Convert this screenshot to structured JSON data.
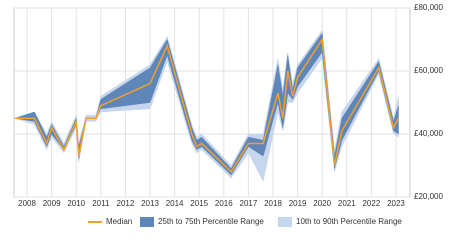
{
  "chart_data": {
    "type": "line",
    "x": [
      2007.5,
      2008.3,
      2008.8,
      2009.0,
      2009.5,
      2010.0,
      2010.1,
      2010.4,
      2010.8,
      2011.0,
      2013.0,
      2013.7,
      2014.7,
      2014.9,
      2015.1,
      2016.3,
      2017.0,
      2017.6,
      2018.2,
      2018.4,
      2018.6,
      2018.8,
      2019.0,
      2020.0,
      2020.5,
      2020.8,
      2022.3,
      2022.9,
      2023.1
    ],
    "series": [
      {
        "name": "10th to 90th Percentile Range",
        "color": "#c6d6ec",
        "lower": [
          45000,
          43000,
          35000,
          39000,
          34000,
          42000,
          31000,
          44000,
          44000,
          47000,
          48000,
          63000,
          37000,
          34000,
          35000,
          26000,
          34000,
          25000,
          47000,
          41000,
          50000,
          50000,
          53000,
          64000,
          28000,
          36000,
          59000,
          40000,
          39000
        ],
        "upper": [
          45000,
          47000,
          40000,
          44000,
          37000,
          46000,
          37000,
          46000,
          46000,
          52000,
          62000,
          71000,
          43000,
          39000,
          40000,
          30000,
          40000,
          40000,
          64000,
          54000,
          66000,
          56000,
          62000,
          73000,
          35000,
          47000,
          64000,
          45000,
          52000
        ]
      },
      {
        "name": "25th to 75th Percentile Range",
        "color": "#5f86b8",
        "lower": [
          45000,
          44000,
          36000,
          40000,
          35000,
          43000,
          32000,
          45000,
          45000,
          48000,
          50000,
          65000,
          38000,
          35000,
          36000,
          27000,
          36000,
          33000,
          50000,
          42000,
          53000,
          51000,
          55000,
          66000,
          29000,
          38000,
          60000,
          41000,
          40000
        ],
        "upper": [
          45000,
          47000,
          39000,
          43000,
          36000,
          45000,
          36000,
          45000,
          45000,
          51000,
          61000,
          70000,
          42000,
          38000,
          39000,
          29000,
          39000,
          38000,
          62000,
          52000,
          65000,
          54000,
          61000,
          72000,
          33000,
          45000,
          63000,
          44000,
          49000
        ]
      },
      {
        "name": "Median",
        "color": "#f0a02c",
        "values": [
          45000,
          45000,
          37000,
          42000,
          35000,
          44000,
          33000,
          45000,
          45000,
          49000,
          56000,
          68000,
          40000,
          36000,
          37000,
          28000,
          37000,
          37000,
          53000,
          45000,
          60000,
          52000,
          58000,
          70000,
          30000,
          41000,
          61000,
          42000,
          45000
        ]
      }
    ],
    "xlim": [
      2007.47,
      2023.57
    ],
    "xticks": [
      2008,
      2009,
      2010,
      2011,
      2012,
      2013,
      2014,
      2015,
      2016,
      2017,
      2018,
      2019,
      2020,
      2021,
      2022,
      2023
    ],
    "ylim": [
      20000,
      80000
    ],
    "yticks": [
      {
        "value": 20000,
        "label": "£20,000"
      },
      {
        "value": 40000,
        "label": "£40,000"
      },
      {
        "value": 60000,
        "label": "£60,000"
      },
      {
        "value": 80000,
        "label": "£80,000"
      }
    ],
    "grid": true,
    "legend": "bottom"
  }
}
